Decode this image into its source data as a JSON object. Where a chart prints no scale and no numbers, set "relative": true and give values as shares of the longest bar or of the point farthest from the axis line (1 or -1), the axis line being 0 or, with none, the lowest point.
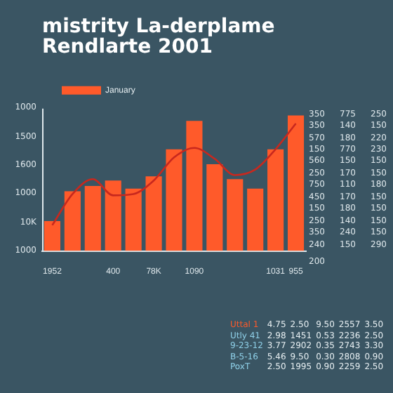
{
  "chart_data": {
    "type": "bar",
    "title": "mistrity La-derplame\nRendlarte 2001",
    "categories": [
      "1952",
      null,
      null,
      "400",
      null,
      "78K",
      null,
      "1090",
      null,
      null,
      null,
      "1031",
      "955"
    ],
    "series": [
      {
        "name": "January",
        "color": "#ff5a2a",
        "values": [
          0.22,
          0.44,
          0.48,
          0.52,
          0.46,
          0.55,
          0.75,
          0.96,
          0.64,
          0.53,
          0.46,
          0.75,
          1
        ]
      },
      {
        "type": "line",
        "color": "#c8281e",
        "values": [
          0.19,
          0.42,
          0.53,
          0.41,
          0.42,
          0.52,
          0.69,
          0.76,
          0.68,
          0.56,
          0.6,
          0.75,
          0.94
        ]
      }
    ],
    "relative": true,
    "legend": "top left",
    "marker": "none",
    "line_style": "solid",
    "annotations": [
      "1000",
      "1500",
      "1600",
      "1000",
      "10K",
      "1000",
      "350 775 250",
      "350 140 150",
      "570 180 220",
      "150 770 230",
      "560 150 150",
      "250 170 150",
      "750 110 180",
      "450 170 150",
      "150 180 150",
      "250 140 150",
      "350 240 150",
      "240 150 290",
      "200",
      "Uttal 1 4.75 2.50 9.50 2557 3.50",
      "Utly 41 2.98 1451 0.53 2236 2.50",
      "9-23-12 3.77 2902 0.35 2743 3.30",
      "B-5-16 5.46 9.50 0.30 2808 0.90",
      "PoxT 2.50 1995 0.90 2259 2.50"
    ]
  }
}
